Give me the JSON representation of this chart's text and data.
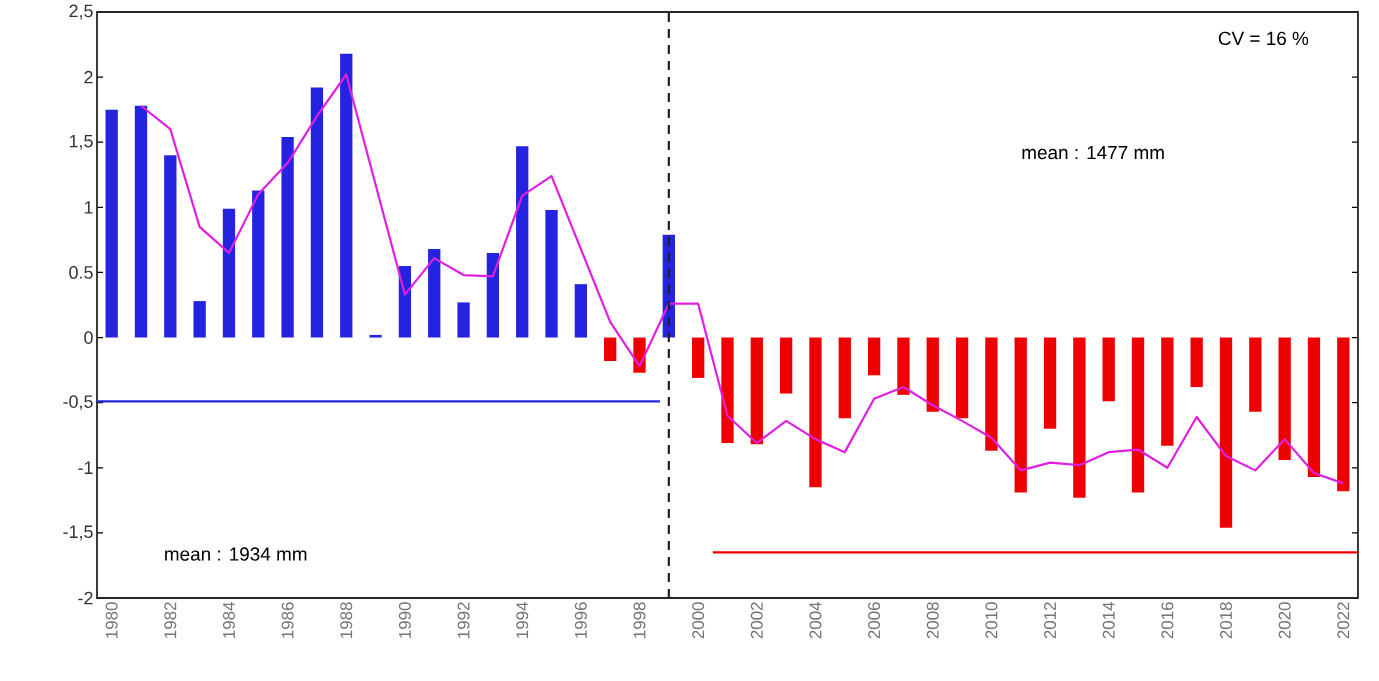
{
  "chart_data": {
    "type": "bar",
    "x": [
      1980,
      1981,
      1982,
      1983,
      1984,
      1985,
      1986,
      1987,
      1988,
      1989,
      1990,
      1991,
      1992,
      1993,
      1994,
      1995,
      1996,
      1997,
      1998,
      1999,
      2000,
      2001,
      2002,
      2003,
      2004,
      2005,
      2006,
      2007,
      2008,
      2009,
      2010,
      2011,
      2012,
      2013,
      2014,
      2015,
      2016,
      2017,
      2018,
      2019,
      2020,
      2021,
      2022
    ],
    "series": [
      {
        "values": [
          1.75,
          1.78,
          1.4,
          0.28,
          0.99,
          1.13,
          1.54,
          1.92,
          2.18,
          0.02,
          0.55,
          0.68,
          0.27,
          0.65,
          1.47,
          0.98,
          0.41,
          -0.18,
          -0.27,
          0.79,
          -0.31,
          -0.81,
          -0.82,
          -0.43,
          -1.15,
          -0.62,
          -0.29,
          -0.44,
          -0.57,
          -0.62,
          -0.87,
          -1.19,
          -0.7,
          -1.23,
          -0.49,
          -1.19,
          -0.83,
          -0.38,
          -1.46,
          -0.57,
          -0.94,
          -1.07,
          -1.18
        ],
        "colors": [
          "#2424e0",
          "#2424e0",
          "#2424e0",
          "#2424e0",
          "#2424e0",
          "#2424e0",
          "#2424e0",
          "#2424e0",
          "#2424e0",
          "#2424e0",
          "#2424e0",
          "#2424e0",
          "#2424e0",
          "#2424e0",
          "#2424e0",
          "#2424e0",
          "#2424e0",
          "#ee0000",
          "#ee0000",
          "#2424e0",
          "#ee0000",
          "#ee0000",
          "#ee0000",
          "#ee0000",
          "#ee0000",
          "#ee0000",
          "#ee0000",
          "#ee0000",
          "#ee0000",
          "#ee0000",
          "#ee0000",
          "#ee0000",
          "#ee0000",
          "#ee0000",
          "#ee0000",
          "#ee0000",
          "#ee0000",
          "#ee0000",
          "#ee0000",
          "#ee0000",
          "#ee0000",
          "#ee0000",
          "#ee0000"
        ]
      },
      {
        "type": "line",
        "color": "#e020e0",
        "x": [
          1981,
          1982,
          1983,
          1984,
          1985,
          1986,
          1987,
          1988,
          1990,
          1991,
          1992,
          1993,
          1994,
          1995,
          1997,
          1998,
          1999,
          2000,
          2001,
          2002,
          2003,
          2004,
          2005,
          2006,
          2007,
          2008,
          2009,
          2010,
          2011,
          2012,
          2013,
          2014,
          2015,
          2016,
          2017,
          2018,
          2019,
          2020,
          2021,
          2022
        ],
        "values": [
          1.78,
          1.6,
          0.85,
          0.65,
          1.1,
          1.34,
          1.7,
          2.02,
          0.33,
          0.61,
          0.48,
          0.47,
          1.09,
          1.24,
          0.12,
          -0.22,
          0.26,
          0.26,
          -0.6,
          -0.81,
          -0.64,
          -0.78,
          -0.88,
          -0.47,
          -0.38,
          -0.52,
          -0.64,
          -0.77,
          -1.02,
          -0.96,
          -0.98,
          -0.88,
          -0.86,
          -1.0,
          -0.61,
          -0.91,
          -1.02,
          -0.78,
          -1.04,
          -1.12
        ]
      },
      {
        "type": "line",
        "color": "#2424e0",
        "x": [
          1979.5,
          1998.7
        ],
        "values": [
          -0.49,
          -0.49
        ]
      },
      {
        "type": "line",
        "color": "#ee0000",
        "x": [
          2000.5,
          2022.5
        ],
        "values": [
          -1.65,
          -1.65
        ]
      }
    ],
    "xlim": [
      1979.5,
      2022.5
    ],
    "xticks": [
      1980,
      1982,
      1984,
      1986,
      1988,
      1990,
      1992,
      1994,
      1996,
      1998,
      2000,
      2002,
      2004,
      2006,
      2008,
      2010,
      2012,
      2014,
      2016,
      2018,
      2020,
      2022
    ],
    "ylim": [
      -2,
      2.5
    ],
    "yticks": [
      -2,
      {
        "value": -1.5,
        "label": "-1,5"
      },
      -1,
      {
        "value": -0.5,
        "label": "-0,5"
      },
      0,
      {
        "value": 0.5,
        "label": "0.5"
      },
      1,
      {
        "value": 1.5,
        "label": "1,5"
      },
      2,
      {
        "value": 2.5,
        "label": "2,5"
      }
    ],
    "ref_lines": [
      {
        "axis": "x",
        "value": 1999,
        "color": "#222222",
        "line_style": "dashed"
      }
    ],
    "annotations": [
      "CV = 16 %",
      "mean : 1477 mm",
      "mean : 1934 mm"
    ]
  }
}
